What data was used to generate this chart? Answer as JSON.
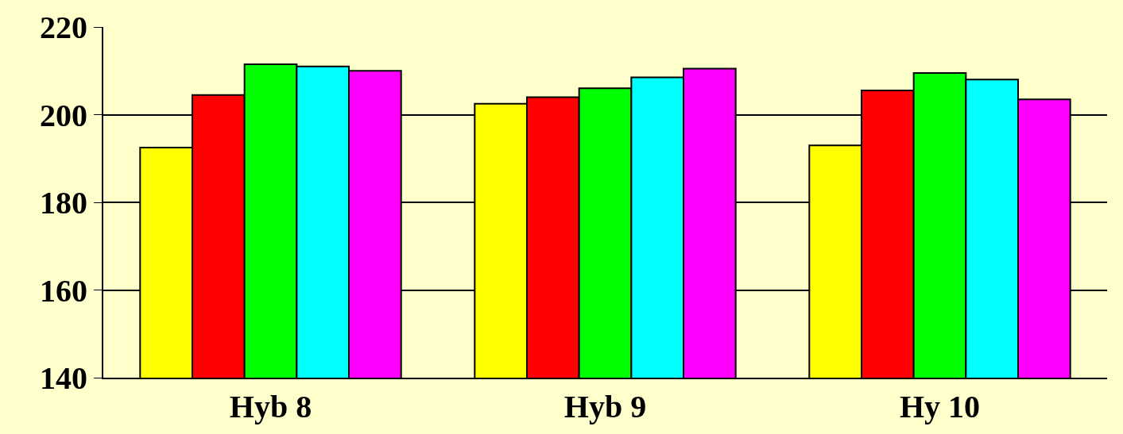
{
  "chart_data": {
    "type": "bar",
    "categories": [
      "Hyb 8",
      "Hyb 9",
      "Hy 10"
    ],
    "series": [
      {
        "color": "#ffff00",
        "values": [
          192.5,
          202.5,
          193
        ]
      },
      {
        "color": "#ff0000",
        "values": [
          204.5,
          204,
          205.5
        ]
      },
      {
        "color": "#00ff00",
        "values": [
          211.5,
          206,
          209.5
        ]
      },
      {
        "color": "#00ffff",
        "values": [
          211,
          208.5,
          208
        ]
      },
      {
        "color": "#ff00ff",
        "values": [
          210,
          210.5,
          203.5
        ]
      }
    ],
    "ylim": [
      140,
      220
    ],
    "yticks": [
      140,
      160,
      180,
      200,
      220
    ],
    "grid": "y"
  }
}
